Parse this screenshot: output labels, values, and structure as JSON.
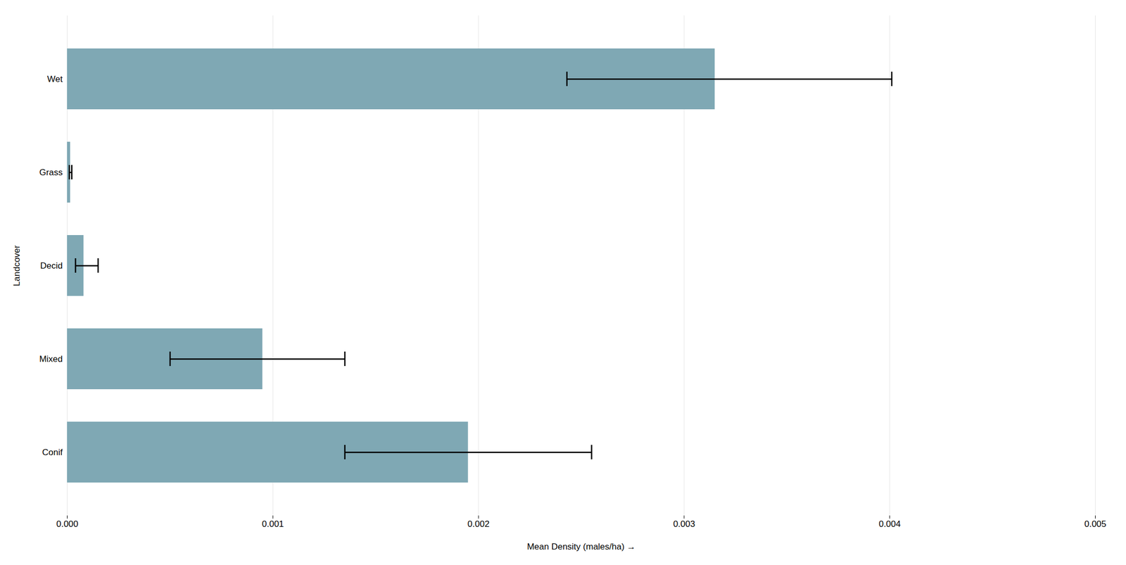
{
  "chart_data": {
    "type": "bar",
    "orientation": "horizontal",
    "categories": [
      "Conif",
      "Mixed",
      "Decid",
      "Grass",
      "Wet"
    ],
    "values": [
      0.00195,
      0.00095,
      8e-05,
      1.5e-05,
      0.00315
    ],
    "error_lower": [
      0.00135,
      0.0005,
      4e-05,
      1e-05,
      0.00243
    ],
    "error_upper": [
      0.00255,
      0.00135,
      0.00015,
      2.2e-05,
      0.00401
    ],
    "color": "#7fa8b4",
    "xlabel": "Mean Density (males/ha)",
    "ylabel": "Landcover",
    "xlim": [
      0,
      0.005
    ],
    "xticks": [
      {
        "value": 0,
        "label": "0.000"
      },
      0.001,
      0.002,
      0.003,
      0.004,
      0.005
    ],
    "grid": true
  }
}
